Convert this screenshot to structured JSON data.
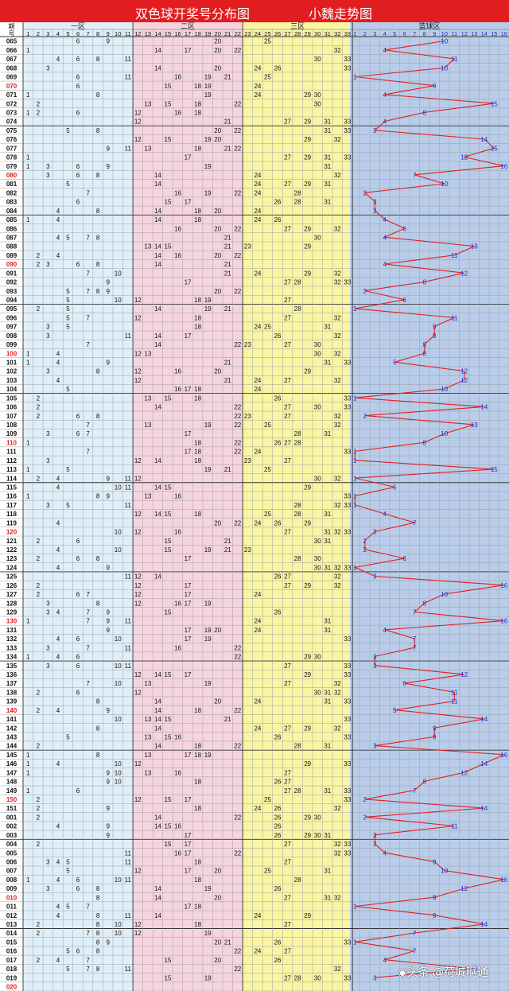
{
  "header": {
    "title": "双色球开奖号分布图",
    "subtitle": "小魏走势图",
    "col_issue_label": "期号",
    "zone_labels": [
      "一区",
      "二区",
      "三区",
      "蓝球区"
    ]
  },
  "watermark": "头条 @荷城啊通",
  "colors": {
    "zone1": "#dfeef8",
    "zone2": "#f6d4dd",
    "zone3": "#f9f5a4",
    "blue_zone": "#b9cdea",
    "title_bar": "#e21d1f",
    "trend_line": "#e02020",
    "blue_number": "#1a2fcc",
    "highlight_issue": "#e02020"
  },
  "chart_data": {
    "type": "table",
    "title": "双色球开奖号分布图",
    "red_ball_columns": [
      1,
      2,
      3,
      4,
      5,
      6,
      7,
      8,
      9,
      10,
      11,
      12,
      13,
      14,
      15,
      16,
      17,
      18,
      19,
      20,
      21,
      22,
      23,
      24,
      25,
      26,
      27,
      28,
      29,
      30,
      31,
      32,
      33
    ],
    "blue_ball_columns": [
      1,
      2,
      3,
      4,
      5,
      6,
      7,
      8,
      9,
      10,
      11,
      12,
      13,
      14,
      15,
      16
    ],
    "blue_trend_line": true,
    "draws": [
      {
        "issue": "065",
        "red": [
          6,
          9,
          20,
          25
        ],
        "blue": 10
      },
      {
        "issue": "066",
        "red": [
          1,
          14,
          17,
          20,
          22,
          32
        ],
        "blue": 4
      },
      {
        "issue": "067",
        "red": [
          4,
          6,
          8,
          11,
          30,
          33
        ],
        "blue": 11
      },
      {
        "issue": "068",
        "red": [
          3,
          14,
          20,
          24,
          26,
          33
        ],
        "blue": 10
      },
      {
        "issue": "069",
        "red": [
          6,
          11,
          16,
          19,
          21,
          25
        ],
        "blue": 1
      },
      {
        "issue": "070",
        "red": [
          6,
          15,
          18,
          19,
          24
        ],
        "blue": 9
      },
      {
        "issue": "071",
        "red": [
          1,
          8,
          19,
          24,
          29,
          30
        ],
        "blue": 4
      },
      {
        "issue": "072",
        "red": [
          2,
          13,
          15,
          18,
          22,
          30
        ],
        "blue": 15
      },
      {
        "issue": "073",
        "red": [
          1,
          2,
          6,
          12,
          16,
          18
        ],
        "blue": 8
      },
      {
        "issue": "074",
        "red": [
          12,
          21,
          27,
          29,
          31,
          33
        ],
        "blue": 4
      },
      {
        "issue": "075",
        "red": [
          5,
          8,
          20,
          22,
          31,
          33
        ],
        "blue": 3
      },
      {
        "issue": "076",
        "red": [
          12,
          15,
          19,
          20,
          29,
          32
        ],
        "blue": 14
      },
      {
        "issue": "077",
        "red": [
          9,
          11,
          13,
          18,
          21,
          22
        ],
        "blue": 15
      },
      {
        "issue": "078",
        "red": [
          1,
          17,
          27,
          29,
          31,
          33
        ],
        "blue": 12
      },
      {
        "issue": "079",
        "red": [
          1,
          3,
          6,
          9,
          19,
          31
        ],
        "blue": 16
      },
      {
        "issue": "080",
        "red": [
          3,
          6,
          8,
          14,
          24,
          32
        ],
        "blue": 7
      },
      {
        "issue": "081",
        "red": [
          5,
          14,
          24,
          27,
          29,
          31
        ],
        "blue": 10
      },
      {
        "issue": "082",
        "red": [
          7,
          16,
          19,
          22,
          24,
          28
        ],
        "blue": 2
      },
      {
        "issue": "083",
        "red": [
          6,
          15,
          17,
          26,
          28,
          31
        ],
        "blue": 3
      },
      {
        "issue": "084",
        "red": [
          4,
          8,
          14,
          18,
          20,
          24
        ],
        "blue": 3
      },
      {
        "issue": "085",
        "red": [
          1,
          4,
          14,
          18,
          24,
          26
        ],
        "blue": 4
      },
      {
        "issue": "086",
        "red": [
          16,
          20,
          22,
          27,
          29,
          32
        ],
        "blue": 6
      },
      {
        "issue": "087",
        "red": [
          4,
          5,
          7,
          8,
          21,
          30
        ],
        "blue": 4
      },
      {
        "issue": "088",
        "red": [
          13,
          14,
          15,
          21,
          23,
          29
        ],
        "blue": 13
      },
      {
        "issue": "089",
        "red": [
          2,
          4,
          14,
          16,
          20,
          22
        ],
        "blue": 11
      },
      {
        "issue": "090",
        "red": [
          2,
          3,
          6,
          8,
          14,
          21
        ],
        "blue": 4
      },
      {
        "issue": "091",
        "red": [
          7,
          10,
          21,
          24,
          29,
          32
        ],
        "blue": 12
      },
      {
        "issue": "092",
        "red": [
          9,
          17,
          27,
          28,
          32,
          33
        ],
        "blue": 8
      },
      {
        "issue": "093",
        "red": [
          5,
          7,
          8,
          9,
          20,
          22
        ],
        "blue": 2
      },
      {
        "issue": "094",
        "red": [
          5,
          10,
          12,
          18,
          19,
          27
        ],
        "blue": 6
      },
      {
        "issue": "095",
        "red": [
          2,
          5,
          14,
          19,
          21,
          28
        ],
        "blue": 1
      },
      {
        "issue": "096",
        "red": [
          5,
          7,
          12,
          18,
          27,
          32
        ],
        "blue": 11
      },
      {
        "issue": "097",
        "red": [
          3,
          5,
          18,
          24,
          25,
          31
        ],
        "blue": 9
      },
      {
        "issue": "098",
        "red": [
          3,
          11,
          14,
          17,
          26,
          32
        ],
        "blue": 9
      },
      {
        "issue": "099",
        "red": [
          7,
          14,
          22,
          23,
          27,
          30
        ],
        "blue": 8
      },
      {
        "issue": "100",
        "red": [
          1,
          4,
          12,
          13,
          30,
          32
        ],
        "blue": 8
      },
      {
        "issue": "101",
        "red": [
          1,
          4,
          9,
          21,
          31,
          33
        ],
        "blue": 5
      },
      {
        "issue": "102",
        "red": [
          3,
          8,
          12,
          16,
          20,
          29
        ],
        "blue": 12
      },
      {
        "issue": "103",
        "red": [
          4,
          12,
          21,
          24,
          27,
          32
        ],
        "blue": 12
      },
      {
        "issue": "104",
        "red": [
          5,
          16,
          17,
          18,
          24
        ],
        "blue": 10
      },
      {
        "issue": "105",
        "red": [
          2,
          13,
          15,
          18,
          26,
          33
        ],
        "blue": 1
      },
      {
        "issue": "106",
        "red": [
          2,
          14,
          22,
          27,
          30,
          33
        ],
        "blue": 14
      },
      {
        "issue": "107",
        "red": [
          2,
          6,
          8,
          22,
          23,
          27,
          32
        ],
        "blue": 2
      },
      {
        "issue": "108",
        "red": [
          7,
          13,
          19,
          22,
          25,
          32
        ],
        "blue": 13
      },
      {
        "issue": "109",
        "red": [
          3,
          6,
          7,
          17,
          28,
          31
        ],
        "blue": 10
      },
      {
        "issue": "110",
        "red": [
          1,
          18,
          22,
          26,
          27,
          28
        ],
        "blue": 8
      },
      {
        "issue": "111",
        "red": [
          7,
          17,
          18,
          22,
          24,
          33
        ],
        "blue": 1
      },
      {
        "issue": "112",
        "red": [
          3,
          12,
          14,
          18,
          23,
          27
        ],
        "blue": 1
      },
      {
        "issue": "113",
        "red": [
          1,
          5,
          19,
          21,
          25
        ],
        "blue": 15
      },
      {
        "issue": "114",
        "red": [
          2,
          4,
          9,
          11,
          12,
          30,
          32
        ],
        "blue": 1
      },
      {
        "issue": "115",
        "red": [
          4,
          10,
          11,
          14,
          15,
          29
        ],
        "blue": 5
      },
      {
        "issue": "116",
        "red": [
          1,
          8,
          9,
          13,
          16,
          33
        ],
        "blue": 1
      },
      {
        "issue": "117",
        "red": [
          3,
          5,
          11,
          28,
          32,
          33
        ],
        "blue": 1
      },
      {
        "issue": "118",
        "red": [
          12,
          14,
          15,
          18,
          25,
          28,
          31
        ],
        "blue": 4
      },
      {
        "issue": "119",
        "red": [
          4,
          20,
          22,
          24,
          26,
          29
        ],
        "blue": 7
      },
      {
        "issue": "120",
        "red": [
          10,
          12,
          16,
          27,
          31,
          32,
          33
        ],
        "blue": 3
      },
      {
        "issue": "121",
        "red": [
          2,
          6,
          15,
          21,
          30,
          31
        ],
        "blue": 2
      },
      {
        "issue": "122",
        "red": [
          4,
          10,
          15,
          19,
          21,
          23
        ],
        "blue": 2
      },
      {
        "issue": "123",
        "red": [
          2,
          6,
          8,
          17,
          28,
          30
        ],
        "blue": 6
      },
      {
        "issue": "124",
        "red": [
          4,
          9,
          30,
          31,
          32,
          33
        ],
        "blue": 1
      },
      {
        "issue": "125",
        "red": [
          11,
          12,
          14,
          26,
          27,
          32
        ],
        "blue": 3
      },
      {
        "issue": "126",
        "red": [
          2,
          12,
          17,
          27,
          29,
          32
        ],
        "blue": 16
      },
      {
        "issue": "127",
        "red": [
          2,
          6,
          7,
          12,
          17,
          24
        ],
        "blue": 10
      },
      {
        "issue": "128",
        "red": [
          3,
          8,
          12,
          16,
          17,
          19
        ],
        "blue": 8
      },
      {
        "issue": "129",
        "red": [
          3,
          4,
          7,
          9,
          15,
          26
        ],
        "blue": 7
      },
      {
        "issue": "130",
        "red": [
          1,
          7,
          9,
          11,
          24,
          31
        ],
        "blue": 16
      },
      {
        "issue": "131",
        "red": [
          9,
          17,
          19,
          20,
          24,
          31
        ],
        "blue": 4
      },
      {
        "issue": "132",
        "red": [
          4,
          6,
          10,
          17,
          19,
          33
        ],
        "blue": 7
      },
      {
        "issue": "133",
        "red": [
          3,
          7,
          11,
          16,
          22
        ],
        "blue": 7
      },
      {
        "issue": "134",
        "red": [
          1,
          4,
          6,
          22,
          29,
          30
        ],
        "blue": 3
      },
      {
        "issue": "135",
        "red": [
          3,
          6,
          10,
          11,
          27,
          33
        ],
        "blue": 3
      },
      {
        "issue": "136",
        "red": [
          12,
          14,
          15,
          17,
          29,
          33
        ],
        "blue": 12
      },
      {
        "issue": "137",
        "red": [
          7,
          10,
          13,
          19,
          27,
          32
        ],
        "blue": 6
      },
      {
        "issue": "138",
        "red": [
          2,
          6,
          12,
          30,
          31,
          32
        ],
        "blue": 11
      },
      {
        "issue": "139",
        "red": [
          8,
          14,
          20,
          24,
          31,
          33
        ],
        "blue": 11
      },
      {
        "issue": "140",
        "red": [
          2,
          4,
          9,
          14,
          18,
          22
        ],
        "blue": 5
      },
      {
        "issue": "141",
        "red": [
          10,
          13,
          14,
          15,
          21,
          33
        ],
        "blue": 14
      },
      {
        "issue": "142",
        "red": [
          8,
          14,
          24,
          27,
          29,
          32
        ],
        "blue": 9
      },
      {
        "issue": "143",
        "red": [
          5,
          13,
          15,
          16,
          26,
          33
        ],
        "blue": 9
      },
      {
        "issue": "144",
        "red": [
          2,
          14,
          18,
          22,
          28,
          31
        ],
        "blue": 3
      },
      {
        "issue": "145",
        "red": [
          1,
          8,
          13,
          17,
          18,
          19
        ],
        "blue": 16
      },
      {
        "issue": "146",
        "red": [
          1,
          4,
          10,
          12,
          29,
          33
        ],
        "blue": 14
      },
      {
        "issue": "147",
        "red": [
          1,
          9,
          10,
          13,
          16,
          27
        ],
        "blue": 12
      },
      {
        "issue": "148",
        "red": [
          9,
          10,
          18,
          26,
          27
        ],
        "blue": 8
      },
      {
        "issue": "149",
        "red": [
          1,
          6,
          27,
          28,
          31,
          33
        ],
        "blue": 7
      },
      {
        "issue": "150",
        "red": [
          2,
          12,
          15,
          17,
          25,
          33
        ],
        "blue": 2
      },
      {
        "issue": "151",
        "red": [
          2,
          9,
          18,
          24,
          26,
          32
        ],
        "blue": 14
      },
      {
        "issue": "001",
        "red": [
          2,
          14,
          22,
          26,
          29,
          30
        ],
        "blue": 2
      },
      {
        "issue": "002",
        "red": [
          4,
          9,
          14,
          15,
          16,
          26
        ],
        "blue": 11
      },
      {
        "issue": "003",
        "red": [
          9,
          17,
          26,
          29,
          30,
          31
        ],
        "blue": 3
      },
      {
        "issue": "004",
        "red": [
          2,
          15,
          17,
          27,
          32,
          33
        ],
        "blue": 3
      },
      {
        "issue": "005",
        "red": [
          11,
          16,
          17,
          22,
          32,
          33
        ],
        "blue": 4
      },
      {
        "issue": "006",
        "red": [
          3,
          4,
          5,
          11,
          18,
          27
        ],
        "blue": 9
      },
      {
        "issue": "007",
        "red": [
          5,
          12,
          17,
          20,
          25,
          31
        ],
        "blue": 10
      },
      {
        "issue": "008",
        "red": [
          1,
          4,
          6,
          10,
          11,
          18,
          28
        ],
        "blue": 16
      },
      {
        "issue": "009",
        "red": [
          3,
          6,
          8,
          14,
          19,
          26
        ],
        "blue": 12
      },
      {
        "issue": "010",
        "red": [
          8,
          14,
          20,
          27,
          31,
          32
        ],
        "blue": 9
      },
      {
        "issue": "011",
        "red": [
          4,
          5,
          7,
          17,
          18
        ],
        "blue": 1
      },
      {
        "issue": "012",
        "red": [
          4,
          8,
          11,
          14,
          24,
          29
        ],
        "blue": 9
      },
      {
        "issue": "013",
        "red": [
          2,
          8,
          10,
          12,
          18,
          27
        ],
        "blue": 14
      },
      {
        "issue": "014",
        "red": [
          2,
          7,
          8,
          10,
          12,
          19
        ],
        "blue": 7
      },
      {
        "issue": "015",
        "red": [
          8,
          9,
          20,
          21,
          26,
          33
        ],
        "blue": 1
      },
      {
        "issue": "016",
        "red": [
          5,
          6,
          8,
          22,
          24,
          27
        ],
        "blue": 7
      },
      {
        "issue": "017",
        "red": [
          2,
          4,
          7,
          15,
          20,
          26
        ],
        "blue": 4
      },
      {
        "issue": "018",
        "red": [
          5,
          7,
          8,
          11,
          22,
          32
        ],
        "blue": 13
      },
      {
        "issue": "019",
        "red": [
          15,
          19,
          27,
          28,
          30,
          33
        ],
        "blue": 3
      },
      {
        "issue": "020",
        "red": [],
        "blue": null
      }
    ]
  }
}
